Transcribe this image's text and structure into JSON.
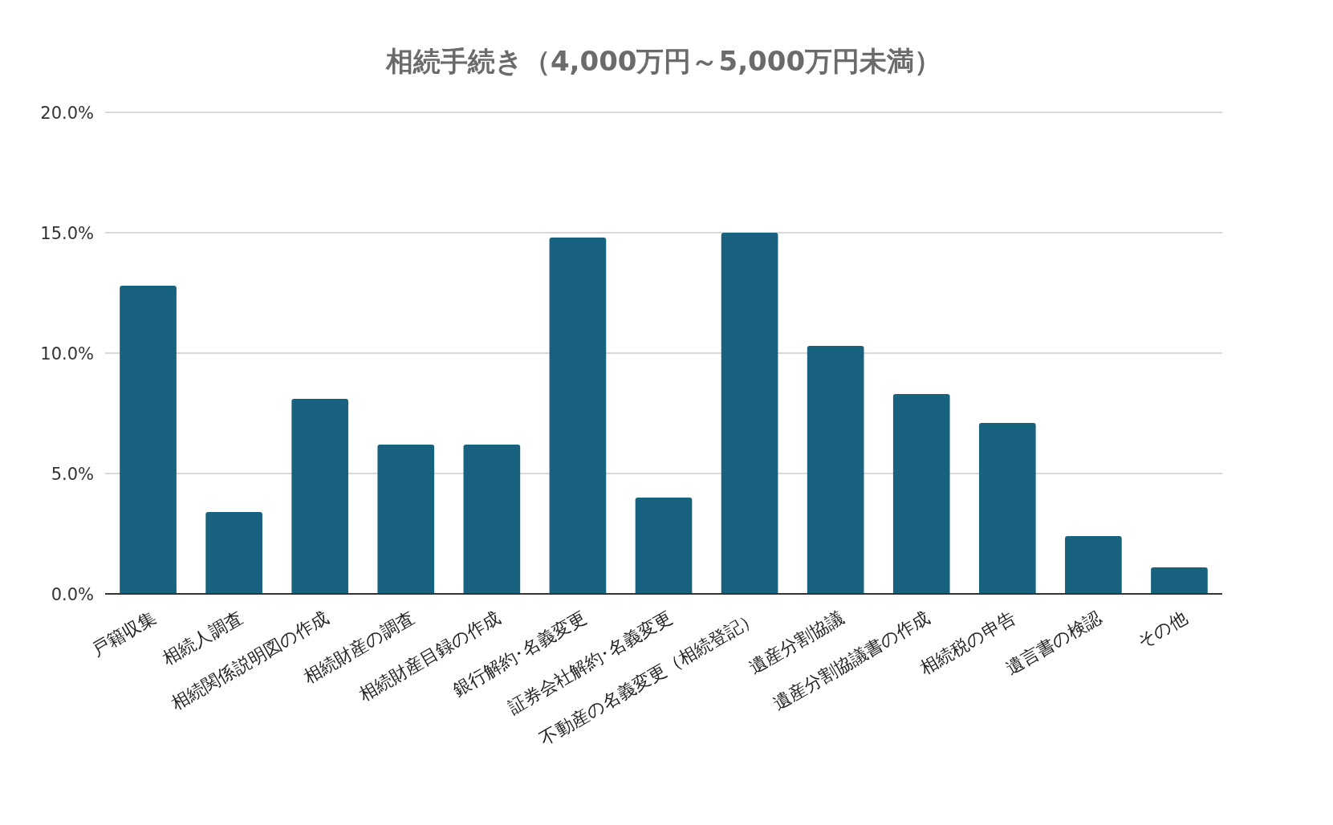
{
  "chart_data": {
    "type": "bar",
    "title": "相続手続き（4,000万円～5,000万円未満）",
    "categories": [
      "戸籍収集",
      "相続人調査",
      "相続関係説明図の作成",
      "相続財産の調査",
      "相続財産目録の作成",
      "銀行解約･名義変更",
      "証券会社解約･名義変更",
      "不動産の名義変更（相続登記）",
      "遺産分割協議",
      "遺産分割協議書の作成",
      "相続税の申告",
      "遺言書の検認",
      "その他"
    ],
    "values": [
      12.8,
      3.4,
      8.1,
      6.2,
      6.2,
      14.8,
      4.0,
      15.0,
      10.3,
      8.3,
      7.1,
      2.4,
      1.1
    ],
    "color": "#18617f",
    "ylim": [
      0,
      20
    ],
    "yticks": [
      {
        "value": 0,
        "label": "0.0%"
      },
      {
        "value": 5,
        "label": "5.0%"
      },
      {
        "value": 10,
        "label": "10.0%"
      },
      {
        "value": 15,
        "label": "15.0%"
      },
      {
        "value": 20,
        "label": "20.0%"
      }
    ],
    "grid": "y"
  }
}
